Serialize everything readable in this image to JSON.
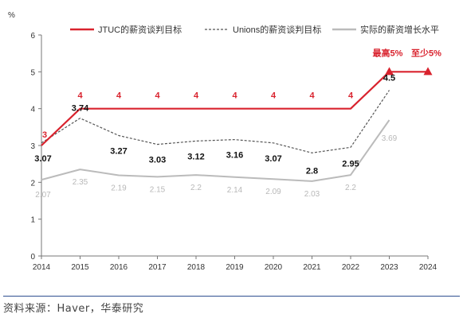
{
  "chart_data": {
    "type": "line",
    "ylabel": "%",
    "ylim": [
      0,
      6
    ],
    "yticks": [
      0,
      1,
      2,
      3,
      4,
      5,
      6
    ],
    "categories": [
      "2014",
      "2015",
      "2016",
      "2017",
      "2018",
      "2019",
      "2020",
      "2021",
      "2022",
      "2023",
      "2024"
    ],
    "legend_position": "top",
    "series": [
      {
        "name": "JTUC的薪资谈判目标",
        "color": "#d9232e",
        "style": "solid",
        "values": [
          3,
          4,
          4,
          4,
          4,
          4,
          4,
          4,
          4,
          5,
          5
        ],
        "labels": [
          "3",
          "4",
          "4",
          "4",
          "4",
          "4",
          "4",
          "4",
          "4",
          "最高5%",
          "至少5%"
        ],
        "markers": [
          false,
          false,
          false,
          false,
          false,
          false,
          false,
          false,
          false,
          true,
          true
        ]
      },
      {
        "name": "Unions的薪资谈判目标",
        "color": "#555555",
        "style": "dashed",
        "values": [
          3.07,
          3.74,
          3.27,
          3.03,
          3.12,
          3.16,
          3.07,
          2.8,
          2.95,
          4.5,
          null
        ],
        "labels": [
          "3.07",
          "3.74",
          "3.27",
          "3.03",
          "3.12",
          "3.16",
          "3.07",
          "2.8",
          "2.95",
          "4.5",
          ""
        ]
      },
      {
        "name": "实际的薪资增长水平",
        "color": "#bbbbbb",
        "style": "solid",
        "values": [
          2.07,
          2.35,
          2.19,
          2.15,
          2.2,
          2.14,
          2.09,
          2.03,
          2.2,
          3.69,
          null
        ],
        "labels": [
          "2.07",
          "2.35",
          "2.19",
          "2.15",
          "2.2",
          "2.14",
          "2.09",
          "2.03",
          "2.2",
          "3.69",
          ""
        ]
      }
    ]
  },
  "source": "资料来源：Haver，华泰研究"
}
